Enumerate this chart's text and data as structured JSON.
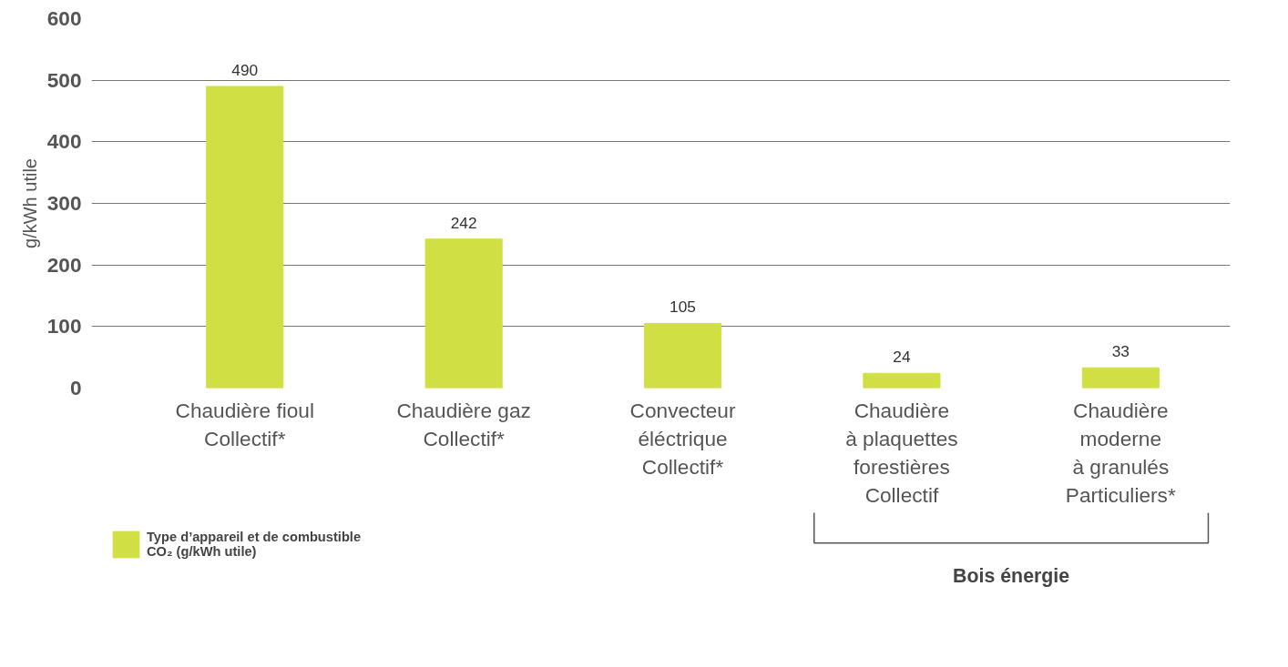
{
  "chart_data": {
    "type": "bar",
    "categories": [
      "Chaudière fioul\nCollectif*",
      "Chaudière gaz\nCollectif*",
      "Convecteur\néléctrique\nCollectif*",
      "Chaudière\nà plaquettes\nforestières\nCollectif",
      "Chaudière\nmoderne\nà granulés\nParticuliers*"
    ],
    "series": [
      {
        "name": "Type d’appareil et de combustible\nCO₂ (g/kWh utile)",
        "color": "#d0e044",
        "values": [
          490,
          242,
          105,
          24,
          33
        ]
      }
    ],
    "ylabel": "g/kWh utile",
    "ylim": [
      0,
      600
    ],
    "yticks": [
      0,
      100,
      200,
      300,
      400,
      500,
      600
    ],
    "grid": "y",
    "data_labels": true,
    "legend": "bottom left",
    "annotations": [
      "Bois énergie"
    ]
  }
}
